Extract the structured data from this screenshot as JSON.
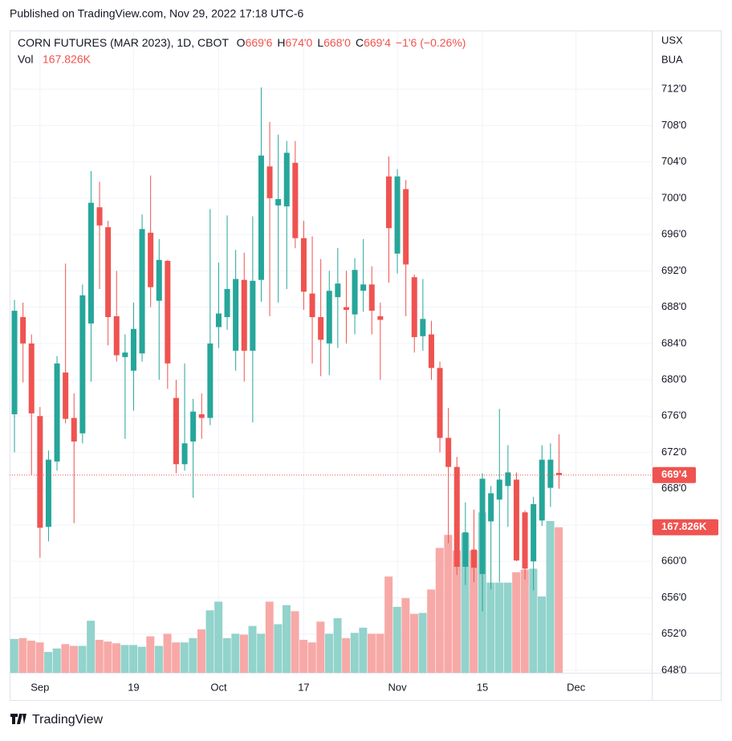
{
  "published": "Published on TradingView.com, Nov 29, 2022 17:18 UTC-6",
  "brand": "TradingView",
  "chart_data": {
    "type": "candlestick",
    "symbol": "CORN FUTURES (MAR 2023), 1D, CBOT",
    "ohlc_legend": [
      {
        "key": "O",
        "value": "669'6"
      },
      {
        "key": "H",
        "value": "674'0"
      },
      {
        "key": "L",
        "value": "668'0"
      },
      {
        "key": "C",
        "value": "669'4"
      }
    ],
    "change": "−1'6 (−0.26%)",
    "volume_title": "Vol",
    "currency": "USX",
    "unit": "BUA",
    "up_color": "#26a69a",
    "down_color": "#ef5350",
    "open": [
      676.2,
      686.9,
      684,
      676,
      663.8,
      671,
      680.8,
      675.8,
      674.1,
      686.2,
      699,
      696.8,
      687,
      682.5,
      681,
      682.9,
      696.2,
      688.7,
      693.1,
      678,
      670.7,
      673.2,
      676.2,
      675.8,
      685.8,
      686.9,
      683.2,
      691,
      683.2,
      691,
      703.5,
      699.2,
      699.1,
      703.9,
      695.6,
      689.5,
      686.9,
      684,
      689.1,
      688,
      687.2,
      689.8,
      690.5,
      687,
      702.4,
      693.9,
      701,
      691.3,
      684.8,
      685,
      681.3,
      673.6,
      670.4,
      659.4,
      661.3,
      658.6,
      664.4,
      666.8,
      668.3,
      669,
      665.4,
      660,
      664.5,
      668.1,
      669.75
    ],
    "high": [
      688.8,
      688.5,
      685,
      677,
      672.2,
      682.6,
      692.8,
      678.5,
      690.5,
      703,
      701.8,
      697.5,
      692,
      685,
      688.5,
      698.2,
      702.5,
      695.5,
      693.2,
      680,
      681.8,
      677.9,
      678.5,
      698.8,
      692.9,
      698.1,
      694.3,
      694,
      698,
      712.2,
      708.4,
      707,
      706.3,
      706.3,
      697.5,
      695.8,
      693.3,
      692,
      694.5,
      692,
      693.4,
      695.5,
      692.5,
      688.5,
      704.6,
      703.2,
      702,
      691.6,
      691.1,
      686.5,
      682,
      676.9,
      671.5,
      666.5,
      665.7,
      669.7,
      668.3,
      676.8,
      672.8,
      669.8,
      665.6,
      667.1,
      672.8,
      673,
      674
    ],
    "low": [
      672,
      679.7,
      669.5,
      660.4,
      662.2,
      670,
      675.2,
      664.2,
      673,
      679.8,
      690,
      683.8,
      682,
      673.5,
      676.6,
      682,
      688,
      680,
      679,
      669.7,
      670,
      667,
      673.5,
      675,
      683.5,
      685.5,
      681,
      679.8,
      675.3,
      688.6,
      687,
      688.5,
      690,
      694.5,
      687.7,
      681.8,
      680.4,
      680.5,
      683.5,
      684,
      685,
      687.5,
      685,
      680,
      690.7,
      691.7,
      687,
      683,
      683.2,
      680,
      672,
      662,
      658.5,
      657.4,
      657.7,
      654.5,
      656.9,
      657.7,
      663.8,
      660,
      658,
      656.8,
      663.9,
      666,
      668
    ],
    "close": [
      687.6,
      684,
      676.3,
      663.7,
      671.2,
      681.8,
      675.7,
      673.2,
      689.3,
      699.5,
      697,
      686.9,
      682.7,
      683,
      685.6,
      696.6,
      690.2,
      693.2,
      681.8,
      670.7,
      673,
      676.5,
      675.8,
      684,
      687.3,
      690,
      691.1,
      683.2,
      690.9,
      704.7,
      700,
      699.9,
      705,
      695.6,
      689.7,
      686.9,
      684.4,
      689.8,
      690.6,
      687.7,
      692.1,
      690.5,
      687.6,
      686.6,
      696.7,
      702.4,
      692.7,
      684.7,
      686.7,
      681.3,
      673.6,
      670.4,
      659.4,
      663.2,
      659.3,
      669.1,
      667.5,
      669,
      669.8,
      660.1,
      659.2,
      666.3,
      671.2,
      671.2,
      669.5
    ],
    "volume": {
      "values": [
        39000,
        40000,
        37000,
        35000,
        24000,
        28000,
        33000,
        31000,
        31000,
        60000,
        38000,
        36000,
        34000,
        32000,
        32000,
        30000,
        42000,
        31000,
        45000,
        35000,
        35000,
        40000,
        50000,
        72000,
        82000,
        40000,
        45000,
        44000,
        54000,
        45000,
        82000,
        56000,
        78000,
        71000,
        38000,
        35000,
        59000,
        45000,
        63000,
        40000,
        46000,
        52000,
        45000,
        45000,
        111000,
        76000,
        86000,
        68000,
        69000,
        96000,
        144000,
        159000,
        141000,
        161000,
        141000,
        185000,
        104000,
        104000,
        104000,
        116000,
        119000,
        120000,
        88000,
        175000,
        167826
      ],
      "value_labels": [
        null,
        null,
        null,
        null,
        null,
        null,
        null,
        null,
        null,
        null,
        null,
        null,
        null,
        null,
        null,
        null,
        null,
        null,
        null,
        null,
        null,
        null,
        null,
        null,
        null,
        null,
        null,
        null,
        null,
        null,
        null,
        null,
        null,
        null,
        null,
        null,
        null,
        null,
        null,
        null,
        null,
        null,
        null,
        null,
        null,
        null,
        null,
        null,
        null,
        null,
        null,
        null,
        null,
        null,
        null,
        null,
        null,
        null,
        null,
        null,
        null,
        null,
        null,
        null,
        "167.826K"
      ],
      "ylim": [
        0,
        200000
      ],
      "up_color": "#92d3cc",
      "down_color": "#f7a9a7"
    },
    "last_price": {
      "value": 669.5,
      "label": "669'4"
    },
    "xlim": [
      -0.57,
      74.9
    ],
    "xticks": [
      {
        "value": 3,
        "label": "Sep"
      },
      {
        "value": 14,
        "label": "19"
      },
      {
        "value": 24,
        "label": "Oct"
      },
      {
        "value": 34,
        "label": "17"
      },
      {
        "value": 45,
        "label": "Nov"
      },
      {
        "value": 55,
        "label": "15"
      },
      {
        "value": 66,
        "label": "Dec"
      }
    ],
    "ylim": [
      647.73,
      718.47
    ],
    "yticks": [
      {
        "value": 648,
        "label": "648'0"
      },
      {
        "value": 652,
        "label": "652'0"
      },
      {
        "value": 656,
        "label": "656'0"
      },
      {
        "value": 660,
        "label": "660'0"
      },
      {
        "value": 664,
        "label": "664'0"
      },
      {
        "value": 668,
        "label": "668'0"
      },
      {
        "value": 672,
        "label": "672'0"
      },
      {
        "value": 676,
        "label": "676'0"
      },
      {
        "value": 680,
        "label": "680'0"
      },
      {
        "value": 684,
        "label": "684'0"
      },
      {
        "value": 688,
        "label": "688'0"
      },
      {
        "value": 692,
        "label": "692'0"
      },
      {
        "value": 696,
        "label": "696'0"
      },
      {
        "value": 700,
        "label": "700'0"
      },
      {
        "value": 704,
        "label": "704'0"
      },
      {
        "value": 708,
        "label": "708'0"
      },
      {
        "value": 712,
        "label": "712'0"
      }
    ],
    "grid": true
  }
}
